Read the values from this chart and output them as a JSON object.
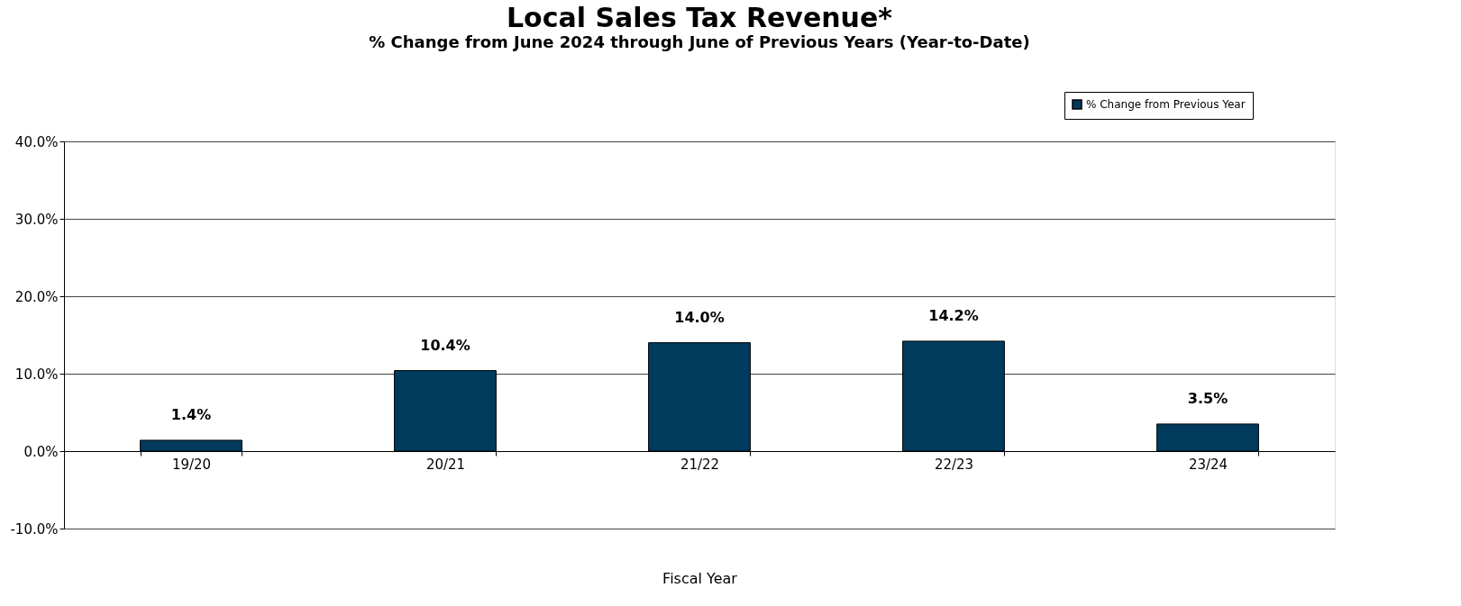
{
  "chart_data": {
    "type": "bar",
    "title": "Local Sales Tax Revenue*",
    "subtitle": "% Change from June 2024 through June of Previous Years (Year-to-Date)",
    "xlabel": "Fiscal Year",
    "categories": [
      "19/20",
      "20/21",
      "21/22",
      "22/23",
      "23/24"
    ],
    "series": [
      {
        "name": "% Change from Previous Year",
        "color": "#003a5c",
        "values": [
          1.4,
          10.4,
          14.0,
          14.2,
          3.5
        ],
        "value_labels": [
          "1.4%",
          "10.4%",
          "14.0%",
          "14.2%",
          "3.5%"
        ]
      }
    ],
    "ylim": [
      -10,
      40
    ],
    "yticks": [
      {
        "value": -10,
        "label": "-10.0%"
      },
      {
        "value": 0,
        "label": "0.0%"
      },
      {
        "value": 10,
        "label": "10.0%"
      },
      {
        "value": 20,
        "label": "20.0%"
      },
      {
        "value": 30,
        "label": "30.0%"
      },
      {
        "value": 40,
        "label": "40.0%"
      }
    ],
    "grid": "y",
    "legend": "top right"
  }
}
